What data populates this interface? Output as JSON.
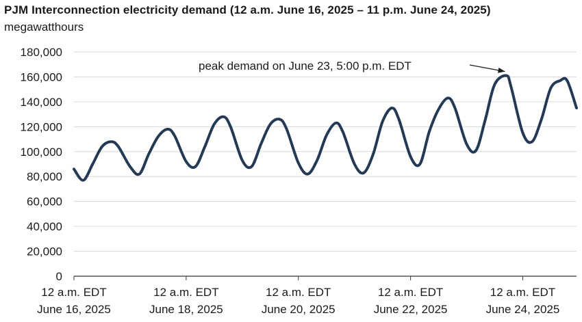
{
  "title": "PJM Interconnection electricity demand (12 a.m. June 16, 2025 – 11 p.m. June 24, 2025)",
  "subtitle": "megawatthours",
  "chart_data": {
    "type": "line",
    "series": [
      {
        "color": "#233a56",
        "x": [
          "2025-06-16T00:00",
          "2025-06-16T04:00",
          "2025-06-16T08:00",
          "2025-06-16T12:00",
          "2025-06-16T16:00",
          "2025-06-16T19:00",
          "2025-06-17T00:00",
          "2025-06-17T04:00",
          "2025-06-17T08:00",
          "2025-06-17T12:00",
          "2025-06-17T16:00",
          "2025-06-17T19:00",
          "2025-06-18T00:00",
          "2025-06-18T04:00",
          "2025-06-18T08:00",
          "2025-06-18T12:00",
          "2025-06-18T16:00",
          "2025-06-18T19:00",
          "2025-06-19T00:00",
          "2025-06-19T04:00",
          "2025-06-19T08:00",
          "2025-06-19T12:00",
          "2025-06-19T16:00",
          "2025-06-19T19:00",
          "2025-06-20T00:00",
          "2025-06-20T04:00",
          "2025-06-20T08:00",
          "2025-06-20T12:00",
          "2025-06-20T16:00",
          "2025-06-20T19:00",
          "2025-06-21T00:00",
          "2025-06-21T04:00",
          "2025-06-21T08:00",
          "2025-06-21T12:00",
          "2025-06-21T16:00",
          "2025-06-21T19:00",
          "2025-06-22T00:00",
          "2025-06-22T04:00",
          "2025-06-22T08:00",
          "2025-06-22T12:00",
          "2025-06-22T16:00",
          "2025-06-22T19:00",
          "2025-06-23T00:00",
          "2025-06-23T04:00",
          "2025-06-23T08:00",
          "2025-06-23T12:00",
          "2025-06-23T17:00",
          "2025-06-23T19:00",
          "2025-06-24T00:00",
          "2025-06-24T04:00",
          "2025-06-24T08:00",
          "2025-06-24T12:00",
          "2025-06-24T16:00",
          "2025-06-24T19:00",
          "2025-06-24T23:00"
        ],
        "values": [
          86000,
          77000,
          90000,
          104000,
          108000,
          104000,
          88000,
          82000,
          98000,
          112000,
          118000,
          113000,
          92000,
          88000,
          104000,
          122000,
          128000,
          120000,
          93000,
          88000,
          106000,
          122000,
          126000,
          118000,
          91000,
          82000,
          93000,
          113000,
          123000,
          116000,
          90000,
          83000,
          98000,
          124000,
          135000,
          126000,
          96000,
          90000,
          116000,
          134000,
          143000,
          135000,
          106000,
          101000,
          126000,
          154000,
          161000,
          152000,
          115000,
          108000,
          126000,
          151000,
          157000,
          157000,
          135000
        ]
      }
    ],
    "x_tick_labels": [
      [
        "12 a.m. EDT",
        "June 16, 2025"
      ],
      [
        "12 a.m. EDT",
        "June 18, 2025"
      ],
      [
        "12 a.m. EDT",
        "June 20, 2025"
      ],
      [
        "12 a.m. EDT",
        "June 22, 2025"
      ],
      [
        "12 a.m. EDT",
        "June 24, 2025"
      ]
    ],
    "x_ticks": [
      "2025-06-16T00:00",
      "2025-06-18T00:00",
      "2025-06-20T00:00",
      "2025-06-22T00:00",
      "2025-06-24T00:00"
    ],
    "xlim": [
      "2025-06-16T00:00",
      "2025-06-24T23:00"
    ],
    "yticks": [
      0,
      20000,
      40000,
      60000,
      80000,
      100000,
      120000,
      140000,
      160000,
      180000
    ],
    "ylim": [
      0,
      180000
    ],
    "grid": "horizontal",
    "annotation": {
      "text": "peak demand on June 23, 5:00 p.m. EDT",
      "x": "2025-06-23T17:00",
      "y": 161000
    }
  }
}
